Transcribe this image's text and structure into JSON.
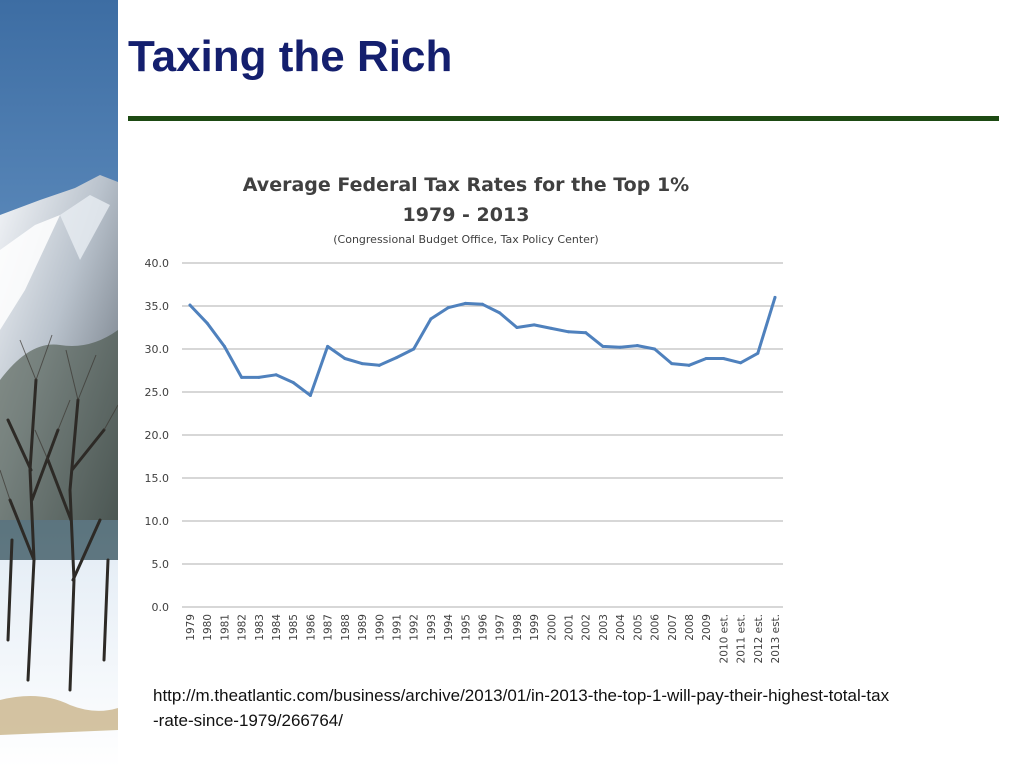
{
  "slide": {
    "title": "Taxing the Rich",
    "source_url": "http://m.theatlantic.com/business/archive/2013/01/in-2013-the-top-1-will-pay-their-highest-total-tax-rate-since-1979/266764/"
  },
  "colors": {
    "title": "#141f6e",
    "rule": "#1d4a13",
    "line": "#4f81bd",
    "grid": "#bfbfbf",
    "chart_text": "#404040"
  },
  "chart_data": {
    "type": "line",
    "title": "Average Federal Tax Rates for the Top 1%",
    "subtitle": "1979 - 2013",
    "note": "(Congressional Budget Office, Tax Policy Center)",
    "xlabel": "",
    "ylabel": "",
    "ylim": [
      0,
      40
    ],
    "yticks": [
      "0.0",
      "5.0",
      "10.0",
      "15.0",
      "20.0",
      "25.0",
      "30.0",
      "35.0",
      "40.0"
    ],
    "grid": true,
    "legend": "none",
    "categories": [
      "1979",
      "1980",
      "1981",
      "1982",
      "1983",
      "1984",
      "1985",
      "1986",
      "1987",
      "1988",
      "1989",
      "1990",
      "1991",
      "1992",
      "1993",
      "1994",
      "1995",
      "1996",
      "1997",
      "1998",
      "1999",
      "2000",
      "2001",
      "2002",
      "2003",
      "2004",
      "2005",
      "2006",
      "2007",
      "2008",
      "2009",
      "2010 est.",
      "2011 est.",
      "2012 est.",
      "2013 est."
    ],
    "series": [
      {
        "values": [
          35.1,
          33.0,
          30.3,
          26.7,
          26.7,
          27.0,
          26.1,
          24.6,
          30.3,
          28.9,
          28.3,
          28.1,
          29.0,
          30.0,
          33.5,
          34.8,
          35.3,
          35.2,
          34.2,
          32.5,
          32.8,
          32.4,
          32.0,
          31.9,
          30.3,
          30.2,
          30.4,
          30.0,
          28.3,
          28.1,
          28.9,
          28.9,
          28.4,
          29.5,
          36.0
        ]
      }
    ]
  }
}
